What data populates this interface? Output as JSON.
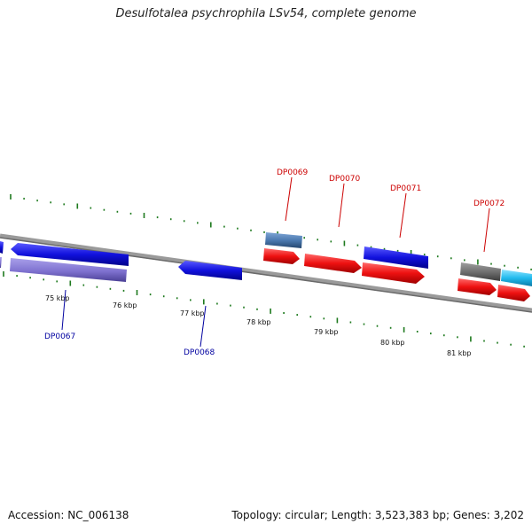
{
  "title": "Desulfotalea psychrophila LSv54, complete genome",
  "footer": {
    "accession": "Accession: NC_006138",
    "summary": "Topology: circular; Length: 3,523,383 bp; Genes: 3,202"
  },
  "scale_labels": [
    "75 kbp",
    "76 kbp",
    "77 kbp",
    "78 kbp",
    "79 kbp",
    "80 kbp",
    "81 kbp"
  ],
  "gene_labels": [
    {
      "text": "DP0067",
      "color": "#0000a0"
    },
    {
      "text": "DP0068",
      "color": "#0000a0"
    },
    {
      "text": "DP0069",
      "color": "#cc0000"
    },
    {
      "text": "DP0070",
      "color": "#cc0000"
    },
    {
      "text": "DP0071",
      "color": "#cc0000"
    },
    {
      "text": "DP0072",
      "color": "#cc0000"
    }
  ],
  "colors": {
    "backbone": "#8c8c8c",
    "tick": "#1e7a1e",
    "forward_gene": "#ee1111",
    "reverse_gene": "#1111dd",
    "pale_gene": "#7f72d0",
    "steel_gene": "#4c7ab0",
    "gray_gene": "#707070",
    "cyan_gene": "#22bbee"
  }
}
